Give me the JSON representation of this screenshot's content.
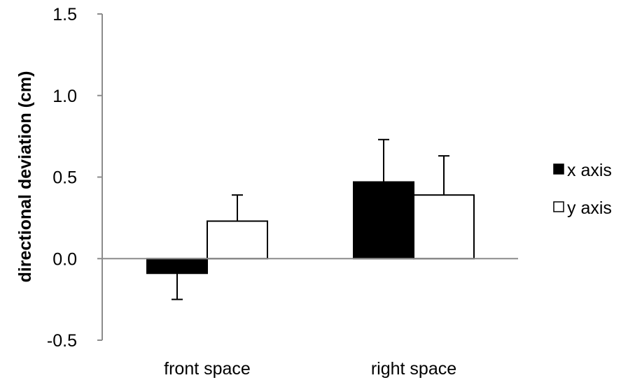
{
  "chart_data": {
    "type": "bar",
    "categories": [
      "front space",
      "right space"
    ],
    "series": [
      {
        "name": "x axis",
        "values": [
          -0.09,
          0.47
        ],
        "errors": [
          0.16,
          0.26
        ],
        "color": "#000000"
      },
      {
        "name": "y axis",
        "values": [
          0.23,
          0.39
        ],
        "errors": [
          0.16,
          0.24
        ],
        "color": "#ffffff"
      }
    ],
    "ylabel": "directional deviation (cm)",
    "xlabel": "",
    "ylim": [
      -0.5,
      1.5
    ],
    "yticks": [
      "-0.5",
      "0.0",
      "0.5",
      "1.0",
      "1.5"
    ],
    "ytick_values": [
      -0.5,
      0.0,
      0.5,
      1.0,
      1.5
    ],
    "grid": false,
    "legend_position": "right"
  }
}
